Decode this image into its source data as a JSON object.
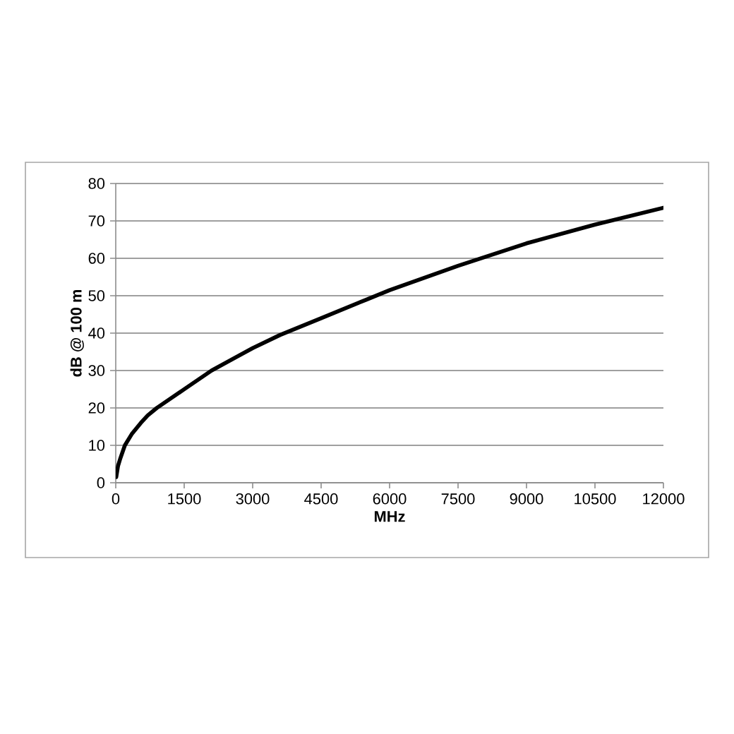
{
  "chart_data": {
    "type": "line",
    "xlabel": "MHz",
    "ylabel": "dB @ 100 m",
    "x": [
      10,
      50,
      100,
      200,
      350,
      550,
      700,
      900,
      1200,
      1500,
      2100,
      3000,
      3600,
      4500,
      5500,
      6000,
      7500,
      9000,
      10500,
      12000
    ],
    "series": [
      {
        "color": "#000000",
        "values": [
          1.5,
          4.5,
          6.5,
          10,
          13,
          16,
          18,
          20,
          22.5,
          25,
          30,
          36,
          39.5,
          44,
          49,
          51.5,
          58,
          64,
          69,
          73.5
        ]
      }
    ],
    "xlim": [
      0,
      12000
    ],
    "ylim": [
      0,
      80
    ],
    "xticks": [
      0,
      1500,
      3000,
      4500,
      6000,
      7500,
      9000,
      10500,
      12000
    ],
    "yticks": [
      0,
      10,
      20,
      30,
      40,
      50,
      60,
      70,
      80
    ],
    "grid": "y",
    "marker": "none",
    "line_style": "solid"
  }
}
